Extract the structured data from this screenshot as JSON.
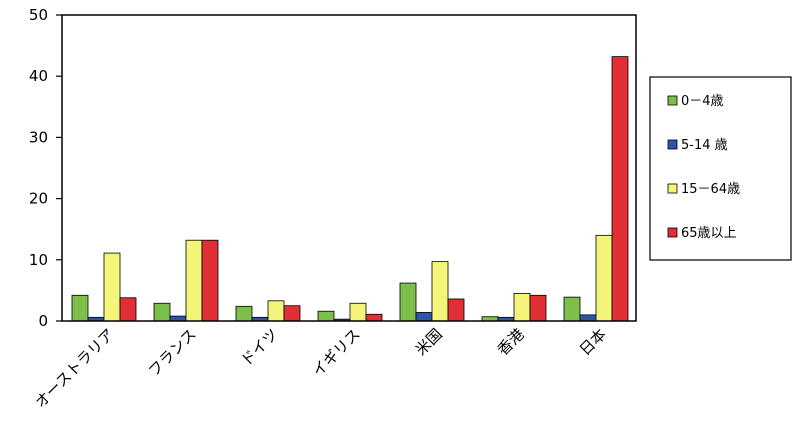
{
  "chart_data": {
    "type": "bar",
    "categories": [
      "オーストラリア",
      "フランス",
      "ドイツ",
      "イギリス",
      "米国",
      "香港",
      "日本"
    ],
    "series": [
      {
        "name": "0－4歳",
        "color": "#7dbf4a",
        "values": [
          4.2,
          2.9,
          2.4,
          1.6,
          6.2,
          0.7,
          3.9
        ]
      },
      {
        "name": "5-14 歳",
        "color": "#2e55a8",
        "values": [
          0.6,
          0.8,
          0.6,
          0.3,
          1.4,
          0.6,
          1.0
        ]
      },
      {
        "name": "15－64歳",
        "color": "#f4f47a",
        "values": [
          11.1,
          13.2,
          3.3,
          2.9,
          9.7,
          4.5,
          14.0
        ]
      },
      {
        "name": "65歳以上",
        "color": "#e03035",
        "values": [
          3.8,
          13.2,
          2.5,
          1.1,
          3.6,
          4.2,
          43.2
        ]
      }
    ],
    "ylim": [
      0,
      50
    ],
    "yticks": [
      0,
      10,
      20,
      30,
      40,
      50
    ],
    "grid": false,
    "legend": "right"
  }
}
